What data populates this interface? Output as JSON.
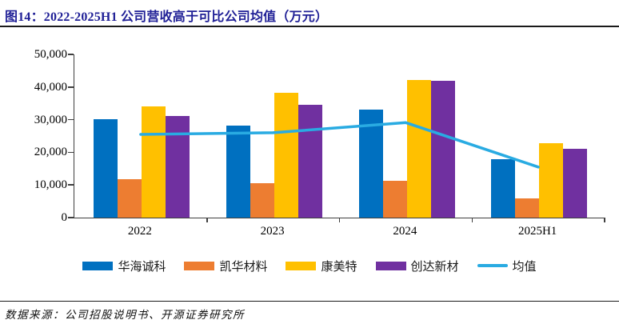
{
  "title": "图14：2022-2025H1 公司营收高于可比公司均值（万元）",
  "source_note": "数据来源：公司招股说明书、开源证券研究所",
  "colors": {
    "title_text": "#1F1F96",
    "rule": "#1a1a1a",
    "axis": "#3f3f3f",
    "bar_blue": "#0070C0",
    "bar_orange": "#ED7D31",
    "bar_yellow": "#FFC000",
    "bar_purple": "#7030A0",
    "line_cyan": "#29ABE2"
  },
  "chart_data": {
    "type": "bar",
    "title": "2022-2025H1 公司营收高于可比公司均值（万元）",
    "categories": [
      "2022",
      "2023",
      "2024",
      "2025H1"
    ],
    "series": [
      {
        "name": "华海诚科",
        "type": "bar",
        "color": "#0070C0",
        "values": [
          30200,
          28300,
          33100,
          17800
        ]
      },
      {
        "name": "凯华材料",
        "type": "bar",
        "color": "#ED7D31",
        "values": [
          11800,
          10500,
          11400,
          6000
        ]
      },
      {
        "name": "康美特",
        "type": "bar",
        "color": "#FFC000",
        "values": [
          34000,
          38300,
          42200,
          22700
        ]
      },
      {
        "name": "创达新材",
        "type": "bar",
        "color": "#7030A0",
        "values": [
          31100,
          34500,
          41900,
          21000
        ]
      },
      {
        "name": "均值",
        "type": "line",
        "color": "#29ABE2",
        "values": [
          25500,
          26000,
          29100,
          15500
        ]
      }
    ],
    "xlabel": "",
    "ylabel": "",
    "ylim": [
      0,
      50000
    ],
    "ytick_step": 10000,
    "ytick_labels": [
      "0",
      "10,000",
      "20,000",
      "30,000",
      "40,000",
      "50,000"
    ],
    "grid": false,
    "legend_position": "bottom"
  }
}
